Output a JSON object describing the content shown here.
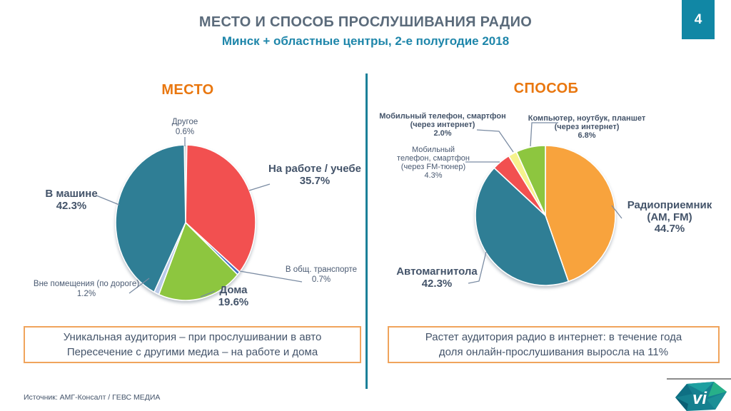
{
  "header": {
    "title": "МЕСТО И СПОСОБ ПРОСЛУШИВАНИЯ РАДИО",
    "subtitle": "Минск + областные центры, 2-е полугодие 2018",
    "page_number": "4"
  },
  "left_chart": {
    "heading": "МЕСТО",
    "callouts": {
      "other": {
        "line1": "Другое",
        "line2": "0.6%"
      },
      "work": {
        "line1": "На работе / учебе",
        "line2": "35.7%"
      },
      "transport": {
        "line1": "В общ. транспорте",
        "line2": "0.7%"
      },
      "home": {
        "line1": "Дома",
        "line2": "19.6%"
      },
      "outside": {
        "line1": "Вне помещения (по дороге)",
        "line2": "1.2%"
      },
      "car": {
        "line1": "В машине",
        "line2": "42.3%"
      }
    },
    "note_line1": "Уникальная аудитория – при прослушивании в авто",
    "note_line2": "Пересечение с другими медиа – на работе и дома"
  },
  "right_chart": {
    "heading": "СПОСОБ",
    "callouts": {
      "mobile_internet": {
        "line1": "Мобильный телефон, смартфон",
        "line2": "(через интернет)",
        "line3": "2.0%"
      },
      "computer": {
        "line1": "Компьютер, ноутбук, планшет",
        "line2": "(через интернет)",
        "line3": "6.8%"
      },
      "mobile_fm": {
        "line1": "Мобильный",
        "line2": "телефон, смартфон",
        "line3": "(через FM-тюнер)",
        "line4": "4.3%"
      },
      "receiver": {
        "line1": "Радиоприемник",
        "line2": "(AM, FM)",
        "line3": "44.7%"
      },
      "car_radio": {
        "line1": "Автомагнитола",
        "line2": "42.3%"
      }
    },
    "note_line1": "Растет аудитория радио в интернет: в течение года",
    "note_line2": "доля онлайн-прослушивания выросла на 11%"
  },
  "footer": {
    "source": "Источник: АМГ-Консалт / ГЕВС МЕДИА",
    "logo_text": "vi"
  },
  "accent_colors": {
    "heading_orange": "#e9770f",
    "title_gray_blue": "#5b6b7b",
    "subtitle_teal": "#1e86aa",
    "note_border_orange": "#f0a45c",
    "divider_teal": "#1b8099",
    "page_badge_teal": "#1187a5",
    "label_text": "#44546a",
    "leader_line": "#7b8ca3"
  },
  "chart_data": [
    {
      "type": "pie",
      "title": "МЕСТО",
      "units": "%",
      "labels": [
        "Другое",
        "На работе / учебе",
        "В общ. транспорте",
        "Дома",
        "Вне помещения (по дороге)",
        "В машине"
      ],
      "values": [
        0.6,
        35.7,
        0.7,
        19.6,
        1.2,
        42.3
      ],
      "colors": [
        "#d9d9d9",
        "#f25050",
        "#4472c4",
        "#8dc63f",
        "#b9c9e8",
        "#2f7e95"
      ],
      "start_angle_deg": -1.1,
      "direction": "clockwise",
      "legend": "none, direct callout labels"
    },
    {
      "type": "pie",
      "title": "СПОСОБ",
      "units": "%",
      "labels": [
        "Радиоприемник (AM, FM)",
        "Автомагнитола",
        "Мобильный телефон, смартфон (через FM-тюнер)",
        "Мобильный телефон, смартфон (через интернет)",
        "Компьютер, ноутбук, планшет (через интернет)"
      ],
      "values": [
        44.7,
        42.3,
        4.3,
        2.0,
        6.8
      ],
      "colors": [
        "#f8a33d",
        "#2f7e95",
        "#f25050",
        "#f6f28e",
        "#8dc63f"
      ],
      "start_angle_deg": 0,
      "direction": "clockwise",
      "legend": "none, direct callout labels"
    }
  ]
}
